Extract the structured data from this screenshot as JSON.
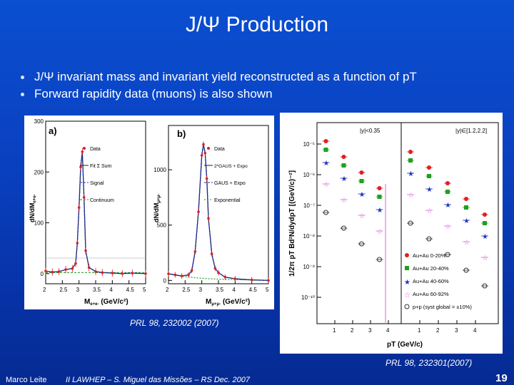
{
  "slide": {
    "title": "J/Ψ Production",
    "bullets": [
      "J/Ψ invariant mass and invariant yield reconstructed as a function of pT",
      "Forward rapidity data (muons) is also shown"
    ],
    "ref_left": "PRL 98, 232002 (2007)",
    "ref_right": "PRL 98, 232301(2007)",
    "footer_author": "Marco Leite",
    "footer_conference": "II LAWHEP – S. Miguel das Missões – RS   Dec. 2007",
    "page_number": "19"
  },
  "chart_data": [
    {
      "type": "line",
      "panel": "a)",
      "xlabel": "M",
      "xlabel_sub": "e+e-",
      "xlabel_unit": "(GeV/c²)",
      "ylabel": "dN/dM",
      "ylabel_sub": "e+e-",
      "xlim": [
        2,
        5
      ],
      "ylim": [
        -20,
        300
      ],
      "x_ticks": [
        "2",
        "2.5",
        "3",
        "3.5",
        "4",
        "4.5",
        "5"
      ],
      "y_ticks": [
        "300",
        "200",
        "100",
        "0"
      ],
      "legend": [
        "Data",
        "Fit Σ Sum",
        "Signal",
        "Continuum"
      ],
      "colors": {
        "data": "#d82020",
        "sum": "#202020",
        "signal": "#2030c0",
        "continuum": "#20a020"
      },
      "x": [
        2.0,
        2.2,
        2.4,
        2.6,
        2.8,
        2.9,
        2.95,
        3.0,
        3.05,
        3.1,
        3.15,
        3.2,
        3.3,
        3.5,
        3.7,
        4.0,
        4.3,
        4.6,
        5.0
      ],
      "values": [
        5,
        3,
        4,
        8,
        10,
        20,
        60,
        130,
        210,
        240,
        150,
        45,
        12,
        4,
        2,
        1,
        0,
        1,
        0
      ]
    },
    {
      "type": "line",
      "panel": "b)",
      "xlabel": "M",
      "xlabel_sub": "μ+μ-",
      "xlabel_unit": "(GeV/c²)",
      "ylabel": "dN/dM",
      "ylabel_sub": "μ+μ-",
      "xlim": [
        2,
        5
      ],
      "ylim": [
        -30,
        1400
      ],
      "x_ticks": [
        "2",
        "2.5",
        "3",
        "3.5",
        "4",
        "4.5",
        "5"
      ],
      "y_ticks": [
        "1000",
        "500",
        "0"
      ],
      "legend": [
        "Data",
        "2*GAUS + Expo",
        "GAUS + Expo",
        "Exponential"
      ],
      "colors": {
        "data": "#d82020",
        "fit2": "#202020",
        "fit1": "#2030c0",
        "exponential": "#20a020"
      },
      "x": [
        2.0,
        2.2,
        2.4,
        2.6,
        2.7,
        2.8,
        2.9,
        3.0,
        3.05,
        3.1,
        3.15,
        3.2,
        3.3,
        3.4,
        3.5,
        3.7,
        4.0,
        4.5,
        5.0
      ],
      "values": [
        60,
        50,
        40,
        50,
        90,
        260,
        620,
        1130,
        1230,
        1150,
        920,
        560,
        240,
        110,
        70,
        30,
        15,
        5,
        0
      ]
    },
    {
      "type": "scatter",
      "ylabel": "1/2π pT Bd²N/dydpT [(GeV/c)⁻²]",
      "xlabel": "pT (GeV/c)",
      "log_y": true,
      "panels": [
        "|y|<0.35",
        "|y|∈[1.2,2.2]"
      ],
      "x_ticks": [
        "1",
        "2",
        "3",
        "4",
        "1",
        "2",
        "3",
        "4"
      ],
      "y_ticks": [
        "10⁻⁵",
        "10⁻⁶",
        "10⁻⁷",
        "10⁻⁸",
        "10⁻⁹",
        "10⁻¹⁰"
      ],
      "legend": [
        "Au+Au 0-20%",
        "Au+Au 20-40%",
        "Au+Au 40-60%",
        "Au+Au 60-92%",
        "p+p (syst global = ±10%)"
      ],
      "colors": [
        "#e02020",
        "#20a020",
        "#2030c0",
        "#e060e0",
        "#303030"
      ],
      "series": [
        {
          "name": "Au+Au 0-20%",
          "mid": [
            0.5,
            1.5,
            2.5,
            3.5
          ],
          "fwd": [
            0.5,
            1.5,
            2.5,
            3.5,
            4.5
          ]
        },
        {
          "name": "Au+Au 20-40%",
          "mid": [
            0.5,
            1.5,
            2.5,
            3.5
          ],
          "fwd": [
            0.5,
            1.5,
            2.5,
            3.5,
            4.5
          ]
        },
        {
          "name": "Au+Au 40-60%",
          "mid": [
            0.5,
            1.5,
            2.5,
            3.5
          ],
          "fwd": [
            0.5,
            1.5,
            2.5,
            3.5,
            4.5
          ]
        },
        {
          "name": "Au+Au 60-92%",
          "mid": [
            0.5,
            1.5,
            2.5,
            3.5
          ],
          "fwd": [
            0.5,
            1.5,
            2.5,
            3.5,
            4.5
          ]
        },
        {
          "name": "p+p",
          "mid": [
            0.5,
            1.5,
            2.5,
            3.5
          ],
          "fwd": [
            0.5,
            1.5,
            2.5,
            3.5,
            4.5
          ]
        }
      ]
    }
  ]
}
